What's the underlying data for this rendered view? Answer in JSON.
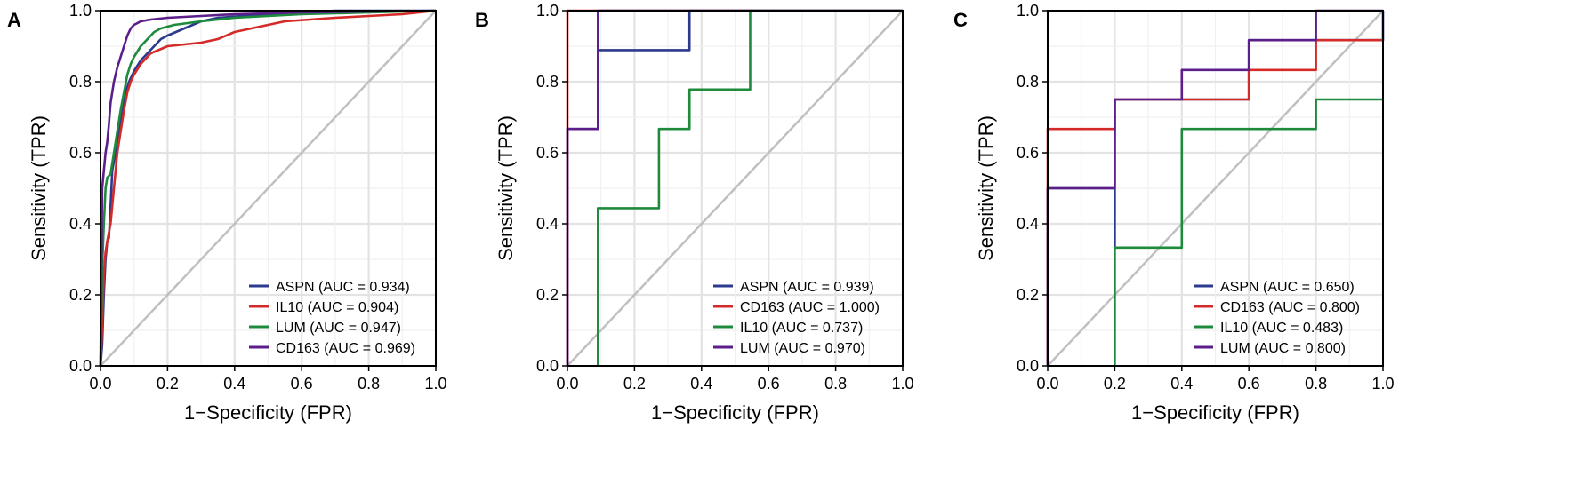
{
  "chart_data": [
    {
      "type": "line",
      "panel": "A",
      "xlabel": "1−Specificity (FPR)",
      "ylabel": "Sensitivity (TPR)",
      "xlim": [
        0,
        1
      ],
      "ylim": [
        0,
        1
      ],
      "xticks": [
        "0.0",
        "0.2",
        "0.4",
        "0.6",
        "0.8",
        "1.0"
      ],
      "yticks": [
        "0.0",
        "0.2",
        "0.4",
        "0.6",
        "0.8",
        "1.0"
      ],
      "grid": true,
      "diagonal": true,
      "legend_position": "bottom-right",
      "series": [
        {
          "name": "ASPN",
          "legend": "ASPN (AUC = 0.934)",
          "color": "#2b3a8c",
          "points": [
            [
              0,
              0
            ],
            [
              0.005,
              0.06
            ],
            [
              0.01,
              0.2
            ],
            [
              0.015,
              0.3
            ],
            [
              0.02,
              0.35
            ],
            [
              0.025,
              0.36
            ],
            [
              0.03,
              0.45
            ],
            [
              0.035,
              0.55
            ],
            [
              0.045,
              0.6
            ],
            [
              0.055,
              0.66
            ],
            [
              0.065,
              0.72
            ],
            [
              0.075,
              0.77
            ],
            [
              0.085,
              0.8
            ],
            [
              0.1,
              0.83
            ],
            [
              0.12,
              0.86
            ],
            [
              0.14,
              0.88
            ],
            [
              0.16,
              0.9
            ],
            [
              0.18,
              0.92
            ],
            [
              0.2,
              0.93
            ],
            [
              0.25,
              0.95
            ],
            [
              0.3,
              0.97
            ],
            [
              0.35,
              0.98
            ],
            [
              0.5,
              0.99
            ],
            [
              0.7,
              1.0
            ],
            [
              1.0,
              1.0
            ]
          ]
        },
        {
          "name": "IL10",
          "legend": "IL10 (AUC = 0.904)",
          "color": "#d42a28",
          "points": [
            [
              0,
              0
            ],
            [
              0.005,
              0.12
            ],
            [
              0.01,
              0.26
            ],
            [
              0.015,
              0.32
            ],
            [
              0.02,
              0.35
            ],
            [
              0.03,
              0.4
            ],
            [
              0.04,
              0.5
            ],
            [
              0.05,
              0.6
            ],
            [
              0.06,
              0.66
            ],
            [
              0.07,
              0.72
            ],
            [
              0.08,
              0.77
            ],
            [
              0.09,
              0.8
            ],
            [
              0.1,
              0.82
            ],
            [
              0.12,
              0.85
            ],
            [
              0.15,
              0.88
            ],
            [
              0.2,
              0.9
            ],
            [
              0.25,
              0.905
            ],
            [
              0.3,
              0.91
            ],
            [
              0.35,
              0.92
            ],
            [
              0.4,
              0.94
            ],
            [
              0.45,
              0.95
            ],
            [
              0.55,
              0.97
            ],
            [
              0.7,
              0.98
            ],
            [
              0.8,
              0.985
            ],
            [
              0.9,
              0.99
            ],
            [
              1.0,
              1.0
            ]
          ]
        },
        {
          "name": "LUM",
          "legend": "LUM (AUC = 0.947)",
          "color": "#1e8a3c",
          "points": [
            [
              0,
              0
            ],
            [
              0.005,
              0.28
            ],
            [
              0.01,
              0.4
            ],
            [
              0.015,
              0.5
            ],
            [
              0.02,
              0.53
            ],
            [
              0.03,
              0.54
            ],
            [
              0.04,
              0.6
            ],
            [
              0.05,
              0.66
            ],
            [
              0.06,
              0.72
            ],
            [
              0.07,
              0.77
            ],
            [
              0.08,
              0.82
            ],
            [
              0.09,
              0.85
            ],
            [
              0.1,
              0.87
            ],
            [
              0.12,
              0.9
            ],
            [
              0.14,
              0.92
            ],
            [
              0.16,
              0.94
            ],
            [
              0.18,
              0.95
            ],
            [
              0.22,
              0.96
            ],
            [
              0.3,
              0.97
            ],
            [
              0.4,
              0.98
            ],
            [
              0.6,
              0.99
            ],
            [
              0.8,
              0.995
            ],
            [
              1.0,
              1.0
            ]
          ]
        },
        {
          "name": "CD163",
          "legend": "CD163 (AUC = 0.969)",
          "color": "#5b1e8a",
          "points": [
            [
              0,
              0
            ],
            [
              0.005,
              0.5
            ],
            [
              0.01,
              0.55
            ],
            [
              0.015,
              0.6
            ],
            [
              0.02,
              0.63
            ],
            [
              0.025,
              0.68
            ],
            [
              0.03,
              0.74
            ],
            [
              0.04,
              0.8
            ],
            [
              0.05,
              0.84
            ],
            [
              0.06,
              0.87
            ],
            [
              0.07,
              0.9
            ],
            [
              0.08,
              0.93
            ],
            [
              0.09,
              0.95
            ],
            [
              0.1,
              0.96
            ],
            [
              0.12,
              0.97
            ],
            [
              0.15,
              0.975
            ],
            [
              0.2,
              0.98
            ],
            [
              0.3,
              0.985
            ],
            [
              0.4,
              0.99
            ],
            [
              0.6,
              0.995
            ],
            [
              1.0,
              1.0
            ]
          ]
        }
      ]
    },
    {
      "type": "line",
      "panel": "B",
      "xlabel": "1−Specificity (FPR)",
      "ylabel": "Sensitivity (TPR)",
      "xlim": [
        0,
        1
      ],
      "ylim": [
        0,
        1
      ],
      "xticks": [
        "0.0",
        "0.2",
        "0.4",
        "0.6",
        "0.8",
        "1.0"
      ],
      "yticks": [
        "0.0",
        "0.2",
        "0.4",
        "0.6",
        "0.8",
        "1.0"
      ],
      "grid": true,
      "diagonal": true,
      "legend_position": "bottom-right",
      "series": [
        {
          "name": "ASPN",
          "legend": "ASPN (AUC = 0.939)",
          "color": "#2b3a8c",
          "points": [
            [
              0,
              0
            ],
            [
              0,
              0.667
            ],
            [
              0.091,
              0.667
            ],
            [
              0.091,
              0.889
            ],
            [
              0.364,
              0.889
            ],
            [
              0.364,
              1.0
            ],
            [
              1.0,
              1.0
            ]
          ]
        },
        {
          "name": "CD163",
          "legend": "CD163 (AUC = 1.000)",
          "color": "#d42a28",
          "points": [
            [
              0,
              0
            ],
            [
              0,
              1.0
            ],
            [
              1.0,
              1.0
            ]
          ]
        },
        {
          "name": "IL10",
          "legend": "IL10 (AUC = 0.737)",
          "color": "#1e8a3c",
          "points": [
            [
              0.091,
              0
            ],
            [
              0.091,
              0.444
            ],
            [
              0.273,
              0.444
            ],
            [
              0.273,
              0.667
            ],
            [
              0.364,
              0.667
            ],
            [
              0.364,
              0.778
            ],
            [
              0.545,
              0.778
            ],
            [
              0.545,
              1.0
            ],
            [
              1.0,
              1.0
            ]
          ]
        },
        {
          "name": "LUM",
          "legend": "LUM (AUC = 0.970)",
          "color": "#5b1e8a",
          "points": [
            [
              0,
              0
            ],
            [
              0,
              0.667
            ],
            [
              0.091,
              0.667
            ],
            [
              0.091,
              1.0
            ],
            [
              1.0,
              1.0
            ]
          ]
        }
      ]
    },
    {
      "type": "line",
      "panel": "C",
      "xlabel": "1−Specificity (FPR)",
      "ylabel": "Sensitivity (TPR)",
      "xlim": [
        0,
        1
      ],
      "ylim": [
        0,
        1
      ],
      "xticks": [
        "0.0",
        "0.2",
        "0.4",
        "0.6",
        "0.8",
        "1.0"
      ],
      "yticks": [
        "0.0",
        "0.2",
        "0.4",
        "0.6",
        "0.8",
        "1.0"
      ],
      "grid": true,
      "diagonal": true,
      "legend_position": "bottom-right",
      "series": [
        {
          "name": "ASPN",
          "legend": "ASPN (AUC = 0.650)",
          "color": "#2b3a8c",
          "points": [
            [
              0,
              0
            ],
            [
              0,
              0.5
            ],
            [
              0.2,
              0.5
            ],
            [
              0.2,
              0.333
            ],
            [
              0.2,
              0.75
            ],
            [
              0.6,
              0.75
            ],
            [
              0.6,
              0.917
            ],
            [
              1.0,
              0.917
            ],
            [
              1.0,
              1.0
            ]
          ]
        },
        {
          "name": "CD163",
          "legend": "CD163 (AUC = 0.800)",
          "color": "#d42a28",
          "points": [
            [
              0,
              0
            ],
            [
              0,
              0.667
            ],
            [
              0.2,
              0.667
            ],
            [
              0.2,
              0.75
            ],
            [
              0.6,
              0.75
            ],
            [
              0.6,
              0.833
            ],
            [
              0.8,
              0.833
            ],
            [
              0.8,
              0.917
            ],
            [
              1.0,
              0.917
            ]
          ]
        },
        {
          "name": "IL10",
          "legend": "IL10 (AUC = 0.483)",
          "color": "#1e8a3c",
          "points": [
            [
              0.2,
              0
            ],
            [
              0.2,
              0.333
            ],
            [
              0.4,
              0.333
            ],
            [
              0.4,
              0.667
            ],
            [
              0.8,
              0.667
            ],
            [
              0.8,
              0.75
            ],
            [
              1.0,
              0.75
            ]
          ]
        },
        {
          "name": "LUM",
          "legend": "LUM (AUC = 0.800)",
          "color": "#5b1e8a",
          "points": [
            [
              0,
              0
            ],
            [
              0,
              0.5
            ],
            [
              0.2,
              0.5
            ],
            [
              0.2,
              0.75
            ],
            [
              0.4,
              0.75
            ],
            [
              0.4,
              0.833
            ],
            [
              0.6,
              0.833
            ],
            [
              0.6,
              0.917
            ],
            [
              0.8,
              0.917
            ],
            [
              0.8,
              1.0
            ],
            [
              1.0,
              1.0
            ]
          ]
        }
      ]
    }
  ]
}
